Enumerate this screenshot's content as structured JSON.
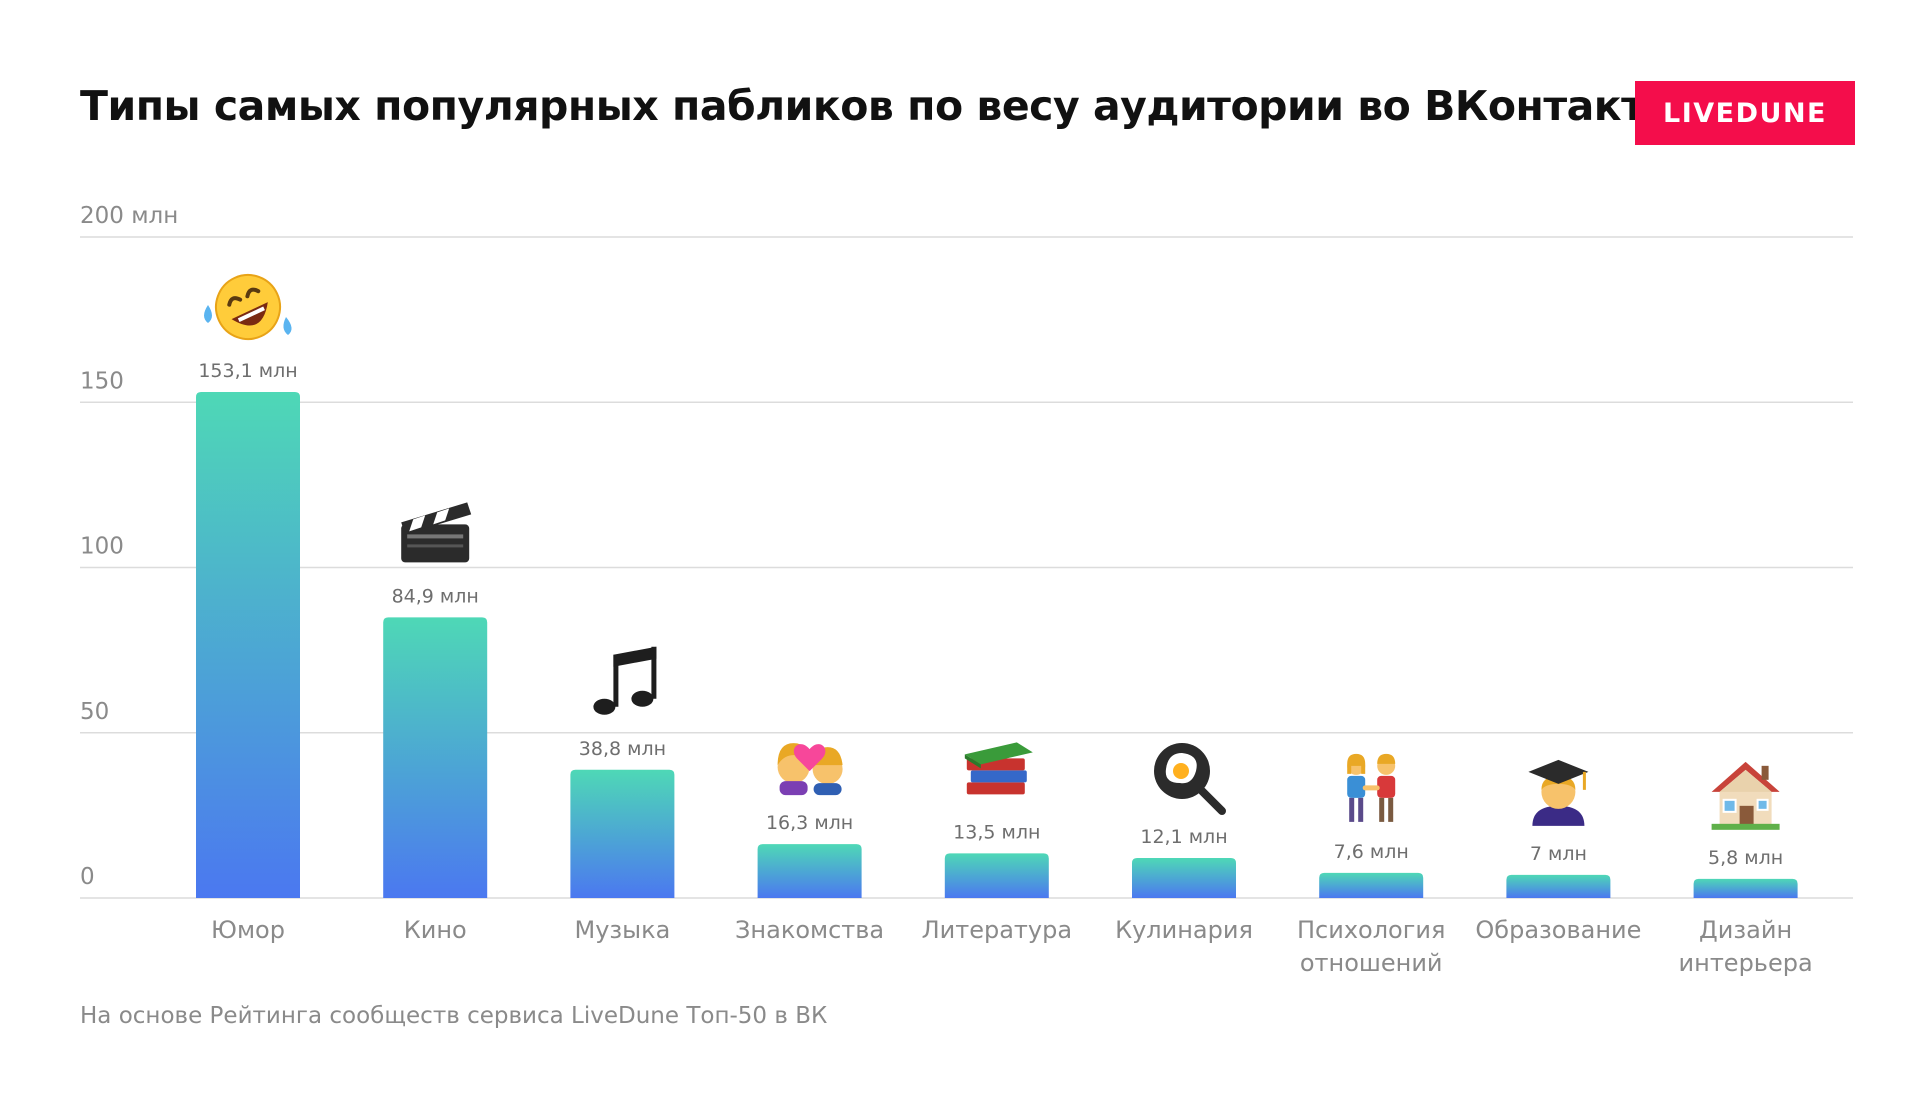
{
  "header": {
    "title": "Типы самых популярных пабликов по весу аудитории во ВКонтакте",
    "logo_text": "LIVEDUNE",
    "logo_color": "#f40d4b"
  },
  "footnote": "На основе Рейтинга сообществ сервиса LiveDune Топ-50 в ВК",
  "chart_data": {
    "type": "bar",
    "title": "Типы самых популярных пабликов по весу аудитории во ВКонтакте",
    "xlabel": "",
    "ylabel": "",
    "ylim": [
      0,
      200
    ],
    "grid": true,
    "y_ticks": [
      {
        "value": 0,
        "label": "0"
      },
      {
        "value": 50,
        "label": "50"
      },
      {
        "value": 100,
        "label": "100"
      },
      {
        "value": 150,
        "label": "150"
      },
      {
        "value": 200,
        "label": "200 млн"
      }
    ],
    "categories": [
      [
        "Юмор"
      ],
      [
        "Кино"
      ],
      [
        "Музыка"
      ],
      [
        "Знакомства"
      ],
      [
        "Литература"
      ],
      [
        "Кулинария"
      ],
      [
        "Психология",
        "отношений"
      ],
      [
        "Образование"
      ],
      [
        "Дизайн",
        "интерьера"
      ]
    ],
    "values": [
      153.1,
      84.9,
      38.8,
      16.3,
      13.5,
      12.1,
      7.6,
      7,
      5.8
    ],
    "value_labels": [
      "153,1 млн",
      "84,9 млн",
      "38,8 млн",
      "16,3 млн",
      "13,5 млн",
      "12,1 млн",
      "7,6 млн",
      "7 млн",
      "5,8 млн"
    ],
    "icons": [
      "rofl-face-icon",
      "clapper-board-icon",
      "music-notes-icon",
      "couple-with-heart-icon",
      "books-icon",
      "frying-pan-egg-icon",
      "couple-holding-hands-icon",
      "graduate-icon",
      "house-icon"
    ],
    "gradient_colors": {
      "top": "#4ed8b6",
      "bottom": "#4b78f0"
    },
    "gridline_color": "#dcdcdc"
  }
}
